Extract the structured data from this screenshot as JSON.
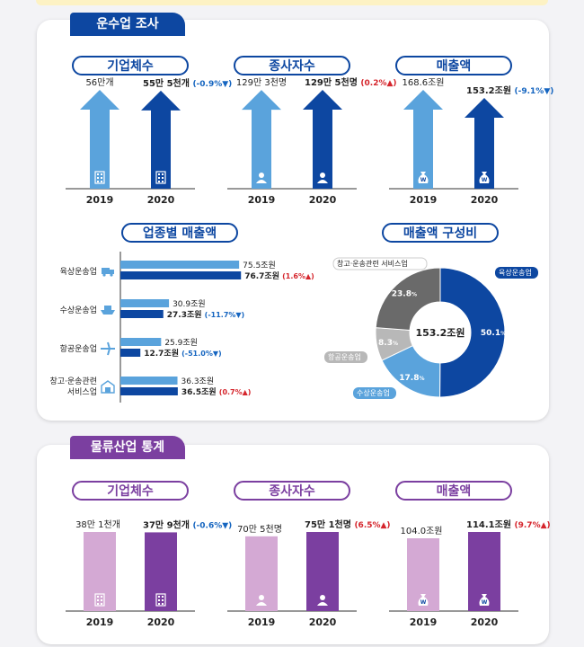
{
  "transport": {
    "section_title": "운수업 조사",
    "panels": [
      {
        "title": "기업체수",
        "icon": "building-icon",
        "years": [
          "2019",
          "2020"
        ],
        "values": [
          56,
          55.5
        ],
        "labels": [
          "56만개",
          "55만 5천개"
        ],
        "change": "(-0.9%",
        "dir": "down"
      },
      {
        "title": "종사자수",
        "icon": "person-icon",
        "years": [
          "2019",
          "2020"
        ],
        "values": [
          129.3,
          129.5
        ],
        "labels": [
          "129만 3천명",
          "129만 5천명"
        ],
        "change": "(0.2%",
        "dir": "up"
      },
      {
        "title": "매출액",
        "icon": "money-bag-icon",
        "years": [
          "2019",
          "2020"
        ],
        "values": [
          168.6,
          153.2
        ],
        "labels": [
          "168.6조원",
          "153.2조원"
        ],
        "change": "(-9.1%",
        "dir": "down"
      }
    ]
  },
  "chart_data": [
    {
      "type": "bar",
      "title": "업종별 매출액",
      "categories": [
        "육상운송업",
        "수상운송업",
        "항공운송업",
        "창고·운송관련 서비스업"
      ],
      "series": [
        {
          "values": [
            75.5,
            30.9,
            25.9,
            36.3
          ]
        },
        {
          "values": [
            76.7,
            27.3,
            12.7,
            36.5
          ]
        }
      ],
      "value_labels": [
        [
          "75.5조원",
          "76.7조원"
        ],
        [
          "30.9조원",
          "27.3조원"
        ],
        [
          "25.9조원",
          "12.7조원"
        ],
        [
          "36.3조원",
          "36.5조원"
        ]
      ],
      "changes": [
        [
          "(1.6%",
          "up"
        ],
        [
          "(-11.7%",
          "down"
        ],
        [
          "(-51.0%",
          "down"
        ],
        [
          "(0.7%",
          "up"
        ]
      ],
      "icons": [
        "truck-icon",
        "ship-icon",
        "airplane-icon",
        "warehouse-icon"
      ]
    },
    {
      "type": "pie",
      "title": "매출액 구성비",
      "center_label": "153.2조원",
      "slices": [
        {
          "name": "육상운송업",
          "value": 50.1,
          "label": "50.1",
          "color": "#0d47a1"
        },
        {
          "name": "수상운송업",
          "value": 17.8,
          "label": "17.8",
          "color": "#5aa3dc"
        },
        {
          "name": "항공운송업",
          "value": 8.3,
          "label": "8.3",
          "color": "#b8b8b8"
        },
        {
          "name": "창고·운송관련 서비스업",
          "value": 23.8,
          "label": "23.8",
          "color": "#6a6a6a"
        }
      ],
      "unit": "%"
    }
  ],
  "logistics": {
    "section_title": "물류산업 통계",
    "panels": [
      {
        "title": "기업체수",
        "icon": "building-icon",
        "years": [
          "2019",
          "2020"
        ],
        "values": [
          38.1,
          37.9
        ],
        "labels": [
          "38만 1천개",
          "37만 9천개"
        ],
        "change": "(-0.6%",
        "dir": "down"
      },
      {
        "title": "종사자수",
        "icon": "person-icon",
        "years": [
          "2019",
          "2020"
        ],
        "values": [
          70.5,
          75.1
        ],
        "labels": [
          "70만 5천명",
          "75만 1천명"
        ],
        "change": "(6.5%",
        "dir": "up"
      },
      {
        "title": "매출액",
        "icon": "money-bag-icon",
        "years": [
          "2019",
          "2020"
        ],
        "values": [
          104.0,
          114.1
        ],
        "labels": [
          "104.0조원",
          "114.1조원"
        ],
        "change": "(9.7%",
        "dir": "up"
      }
    ]
  },
  "colors": {
    "navy": "#0d47a1",
    "light_blue": "#5aa3dc",
    "purple": "#7b3fa0",
    "lavender": "#d4a9d4",
    "up": "#d5252c",
    "down": "#1565c0"
  }
}
